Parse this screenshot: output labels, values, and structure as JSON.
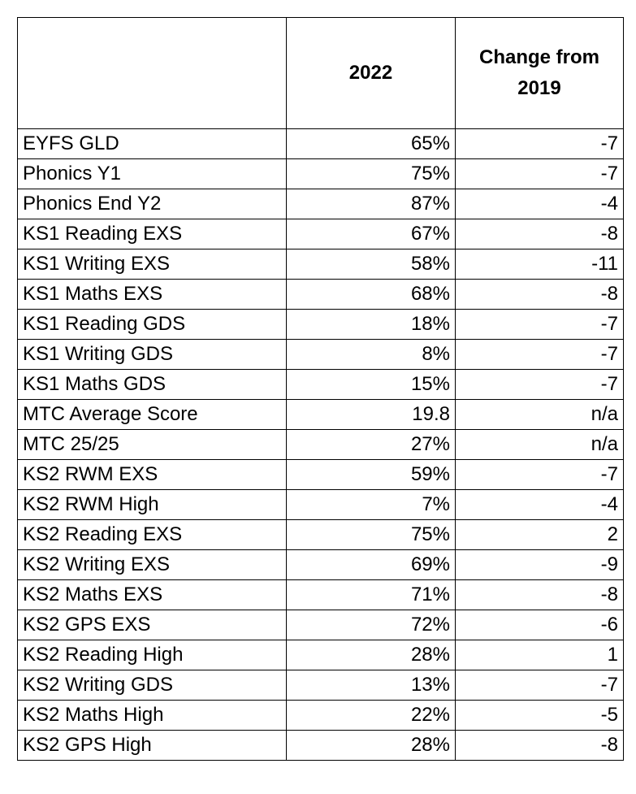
{
  "header": {
    "col1": "",
    "col2": "2022",
    "col3": "Change from 2019"
  },
  "rows": [
    {
      "label": "EYFS GLD",
      "value": "65%",
      "change": "-7"
    },
    {
      "label": "Phonics Y1",
      "value": "75%",
      "change": "-7"
    },
    {
      "label": "Phonics End Y2",
      "value": "87%",
      "change": "-4"
    },
    {
      "label": "KS1 Reading EXS",
      "value": "67%",
      "change": "-8"
    },
    {
      "label": "KS1 Writing EXS",
      "value": "58%",
      "change": "-11"
    },
    {
      "label": "KS1 Maths EXS",
      "value": "68%",
      "change": "-8"
    },
    {
      "label": "KS1 Reading GDS",
      "value": "18%",
      "change": "-7"
    },
    {
      "label": "KS1 Writing GDS",
      "value": "8%",
      "change": "-7"
    },
    {
      "label": "KS1 Maths GDS",
      "value": "15%",
      "change": "-7"
    },
    {
      "label": "MTC Average Score",
      "value": "19.8",
      "change": "n/a"
    },
    {
      "label": "MTC 25/25",
      "value": "27%",
      "change": "n/a"
    },
    {
      "label": "KS2 RWM EXS",
      "value": "59%",
      "change": "-7"
    },
    {
      "label": "KS2 RWM High",
      "value": "7%",
      "change": "-4"
    },
    {
      "label": "KS2 Reading EXS",
      "value": "75%",
      "change": "2"
    },
    {
      "label": "KS2 Writing EXS",
      "value": "69%",
      "change": "-9"
    },
    {
      "label": "KS2 Maths EXS",
      "value": "71%",
      "change": "-8"
    },
    {
      "label": "KS2 GPS EXS",
      "value": "72%",
      "change": "-6"
    },
    {
      "label": "KS2 Reading High",
      "value": "28%",
      "change": "1"
    },
    {
      "label": "KS2 Writing GDS",
      "value": "13%",
      "change": "-7"
    },
    {
      "label": "KS2 Maths High",
      "value": "22%",
      "change": "-5"
    },
    {
      "label": "KS2 GPS High",
      "value": "28%",
      "change": "-8"
    }
  ]
}
